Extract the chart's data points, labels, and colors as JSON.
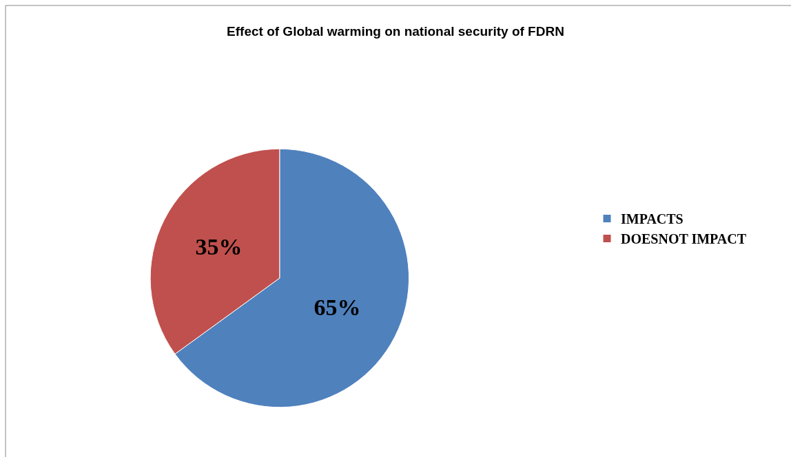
{
  "chart_data": {
    "type": "pie",
    "title": "Effect of Global warming on national security of FDRN",
    "categories": [
      "IMPACTS",
      "DOESNOT IMPACT"
    ],
    "values": [
      65,
      35
    ],
    "colors": [
      "#4f81bd",
      "#c0504d"
    ],
    "value_labels": [
      "65%",
      "35%"
    ],
    "legend": "right"
  }
}
